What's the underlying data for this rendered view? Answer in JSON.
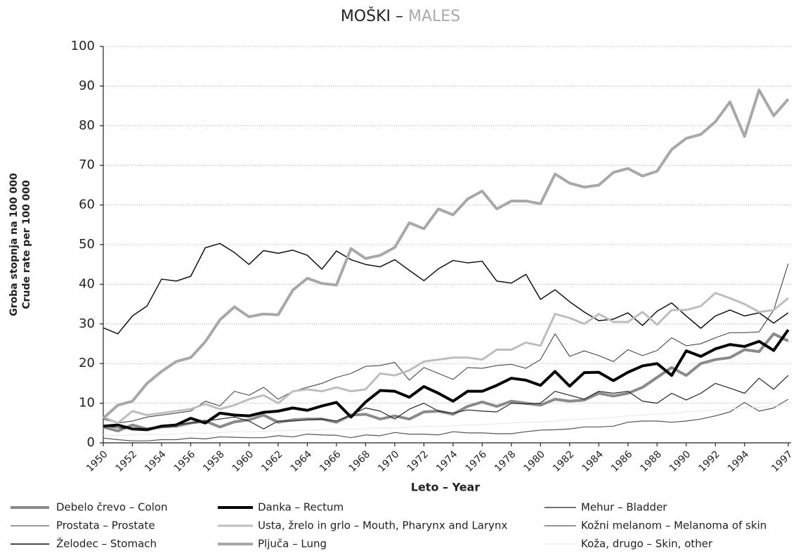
{
  "chart_data": {
    "type": "line",
    "title": [
      "MOŠKI – ",
      "MALES"
    ],
    "ylabel": [
      "Groba stopnja na 100 000",
      "Crude rate per 100 000"
    ],
    "xlabel": "Leto – Year",
    "xlim": [
      1950,
      1997
    ],
    "ylim": [
      0,
      100
    ],
    "xticks": [
      1950,
      1952,
      1954,
      1956,
      1958,
      1960,
      1962,
      1964,
      1966,
      1968,
      1970,
      1972,
      1974,
      1976,
      1978,
      1980,
      1982,
      1984,
      1986,
      1988,
      1990,
      1992,
      1994,
      1997
    ],
    "yticks": [
      0,
      10,
      20,
      30,
      40,
      50,
      60,
      70,
      80,
      90,
      100
    ],
    "grid": true,
    "x": [
      1950,
      1951,
      1952,
      1953,
      1954,
      1955,
      1956,
      1957,
      1958,
      1959,
      1960,
      1961,
      1962,
      1963,
      1964,
      1965,
      1966,
      1967,
      1968,
      1969,
      1970,
      1971,
      1972,
      1973,
      1974,
      1975,
      1976,
      1977,
      1978,
      1979,
      1980,
      1981,
      1982,
      1983,
      1984,
      1985,
      1986,
      1987,
      1988,
      1989,
      1990,
      1991,
      1992,
      1993,
      1994,
      1995,
      1996,
      1997
    ],
    "series": [
      {
        "name": "Debelo črevo – Colon",
        "color": "#8a8a8a",
        "width": 4,
        "values": [
          4,
          3,
          4.5,
          3.5,
          4,
          4.2,
          5,
          5.5,
          4,
          5.3,
          5.8,
          7,
          5.2,
          5.8,
          6,
          6,
          5.2,
          7,
          7.2,
          6,
          6.8,
          6,
          7.8,
          8,
          7.2,
          9.2,
          10.3,
          9.2,
          10.5,
          10,
          9.5,
          11,
          10.5,
          10.8,
          12.5,
          11.8,
          12.5,
          14,
          16.5,
          19,
          17,
          20,
          21,
          21.5,
          23.5,
          23,
          27.5,
          25.7
        ]
      },
      {
        "name": "Prostata – Prostate",
        "color": "#333333",
        "width": 1,
        "values": [
          6,
          5,
          5.5,
          6.5,
          7,
          7.5,
          8,
          10.5,
          9.3,
          13,
          12,
          14,
          11,
          13,
          14,
          15,
          16.5,
          17.5,
          19.3,
          19.5,
          20.3,
          15.8,
          19,
          17.5,
          16,
          19,
          18.8,
          19.5,
          19.8,
          18.8,
          21,
          27.5,
          21.8,
          23.2,
          22,
          20.5,
          23.5,
          22,
          23.3,
          26.5,
          24.5,
          25,
          26.5,
          27.8,
          27.8,
          28,
          33.5,
          45.2
        ]
      },
      {
        "name": "Želodec – Stomach",
        "color": "#111111",
        "width": 1.5,
        "values": [
          29,
          27.5,
          32,
          34.5,
          41.3,
          40.8,
          42,
          49.2,
          50.3,
          48,
          45,
          48.5,
          47.8,
          48.6,
          47.3,
          43.8,
          48.4,
          46.2,
          45,
          44.4,
          46.2,
          43.5,
          40.9,
          43.9,
          46,
          45.4,
          45.8,
          40.8,
          40.3,
          42.5,
          36.2,
          38.6,
          35.6,
          33,
          30.8,
          31.2,
          32.8,
          29.6,
          33.2,
          35.3,
          32,
          28.9,
          32,
          33.5,
          32,
          32.8,
          30.2,
          32.8
        ]
      },
      {
        "name": "Danka – Rectum",
        "color": "#000000",
        "width": 4,
        "values": [
          4.2,
          4.5,
          3.5,
          3.3,
          4.2,
          4.5,
          6.2,
          5,
          7.5,
          7,
          6.8,
          7.7,
          8,
          8.8,
          8.2,
          9.3,
          10.2,
          6.5,
          10.3,
          13.2,
          13,
          11.5,
          14.2,
          12.5,
          10.5,
          13,
          13,
          14.5,
          16.3,
          15.8,
          14.5,
          18,
          14.3,
          17.7,
          17.8,
          15.7,
          17.8,
          19.4,
          20,
          17,
          23.2,
          21.8,
          23.7,
          24.8,
          24.3,
          25.6,
          23.3,
          28.5
        ]
      },
      {
        "name": "Usta, žrelo in grlo – Mouth, Pharynx and Larynx",
        "color": "#bdbdbd",
        "width": 3,
        "values": [
          6.5,
          5,
          8,
          7,
          7.5,
          8,
          8.5,
          9.8,
          8.5,
          9.5,
          11,
          12,
          10,
          13,
          13.5,
          13,
          14,
          13,
          13.5,
          17.5,
          17,
          18.3,
          20.5,
          21,
          21.5,
          21.5,
          21,
          23.5,
          23.5,
          25.3,
          24.5,
          32.5,
          31.5,
          30,
          32.5,
          30.5,
          30.5,
          33,
          29.8,
          33.5,
          33.5,
          34.5,
          37.8,
          36.5,
          35,
          33,
          33.5,
          36.5
        ]
      },
      {
        "name": "Pljuča – Lung",
        "color": "#a8a8a8",
        "width": 4,
        "values": [
          6.2,
          9.5,
          10.5,
          15,
          18,
          20.5,
          21.5,
          25.5,
          31,
          34.3,
          31.8,
          32.5,
          32.3,
          38.5,
          41.5,
          40.2,
          39.8,
          49,
          46.5,
          47.3,
          49.3,
          55.5,
          54,
          59,
          57.5,
          61.5,
          63.5,
          59,
          61,
          61,
          60.3,
          67.8,
          65.5,
          64.5,
          65,
          68.2,
          69.2,
          67.3,
          68.5,
          74,
          76.8,
          77.8,
          81,
          86,
          77.3,
          89,
          82.5,
          86.7
        ]
      },
      {
        "name": "Mehur – Bladder",
        "color": "#222222",
        "width": 1.2,
        "values": [
          4.3,
          3.8,
          3.5,
          3.2,
          4,
          4.5,
          5,
          5.5,
          6,
          6.5,
          5.5,
          3.5,
          5.5,
          5.5,
          5.8,
          6,
          5.5,
          7,
          8.8,
          8,
          6,
          8.5,
          10,
          8,
          7.5,
          8.3,
          8,
          7.8,
          10,
          9.8,
          10,
          13,
          12,
          11,
          13,
          12.5,
          13,
          10.5,
          10,
          12.5,
          10.8,
          12.5,
          15,
          13.8,
          12.5,
          16.3,
          13.5,
          17
        ]
      },
      {
        "name": "Kožni melanom – Melanoma of skin",
        "color": "#555555",
        "width": 1.2,
        "values": [
          1.2,
          0.8,
          0.5,
          0.5,
          0.8,
          0.8,
          1.2,
          1,
          1.5,
          1.4,
          1.3,
          1.3,
          1.8,
          1.5,
          2.2,
          2,
          1.9,
          1.3,
          2,
          1.8,
          2.6,
          2.2,
          2.2,
          2,
          2.8,
          2.5,
          2.5,
          2.3,
          2.3,
          2.8,
          3.2,
          3.3,
          3.5,
          4,
          4,
          4.2,
          5.2,
          5.5,
          5.5,
          5.2,
          5.5,
          6,
          6.8,
          7.8,
          10.2,
          8,
          8.8,
          11
        ]
      },
      {
        "name": "Koža, drugo – Skin, other",
        "color": "#e6e6e6",
        "width": 1,
        "values": [
          2,
          1.8,
          2,
          2.2,
          2,
          2.3,
          2.5,
          2.4,
          2.6,
          2.8,
          2.7,
          3,
          3,
          3.2,
          3.1,
          3.3,
          3.5,
          3.4,
          3.6,
          3.8,
          3.7,
          4,
          4.2,
          4.1,
          4.3,
          4.5,
          4.6,
          4.8,
          5,
          5.2,
          5.3,
          5.5,
          5.8,
          6,
          6.2,
          6.5,
          6.8,
          7,
          7.2,
          7.5,
          7.8,
          8,
          8.3,
          8.5,
          8.8,
          9,
          9.3,
          9.5
        ]
      }
    ]
  }
}
